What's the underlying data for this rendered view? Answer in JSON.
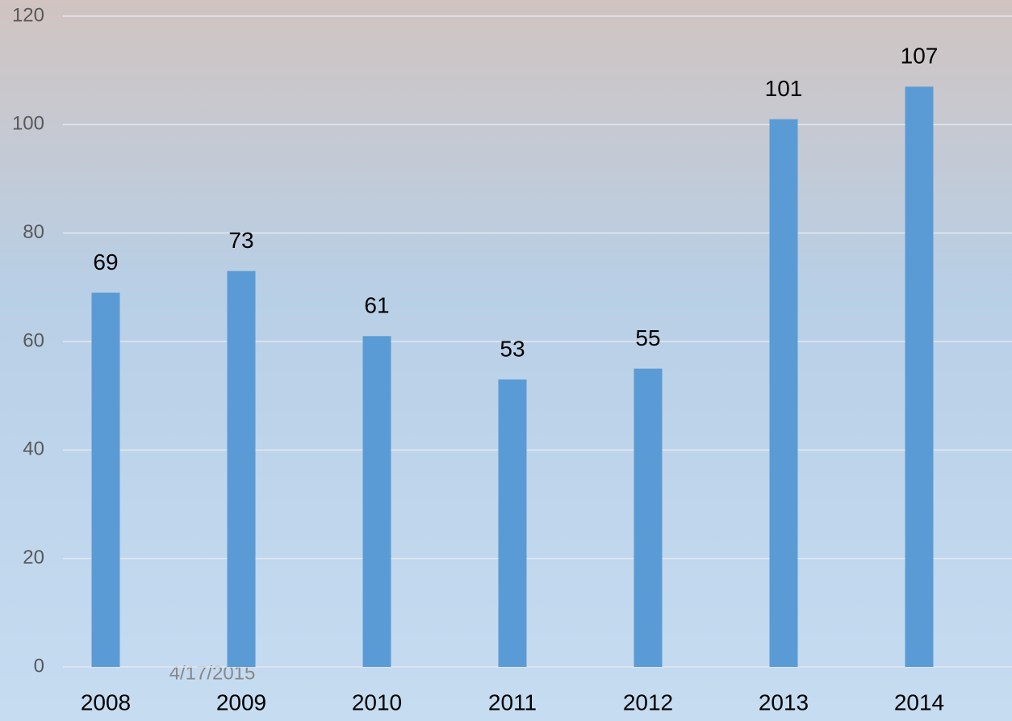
{
  "chart_data": {
    "type": "bar",
    "categories": [
      "2008",
      "2009",
      "2010",
      "2011",
      "2012",
      "2013",
      "2014"
    ],
    "values": [
      69,
      73,
      61,
      53,
      55,
      101,
      107
    ],
    "color": "#5b9bd5",
    "ylim": [
      0,
      120
    ],
    "yticks": [
      0,
      20,
      40,
      60,
      80,
      100,
      120
    ],
    "grid": true,
    "annotation": "4/17/2015"
  }
}
